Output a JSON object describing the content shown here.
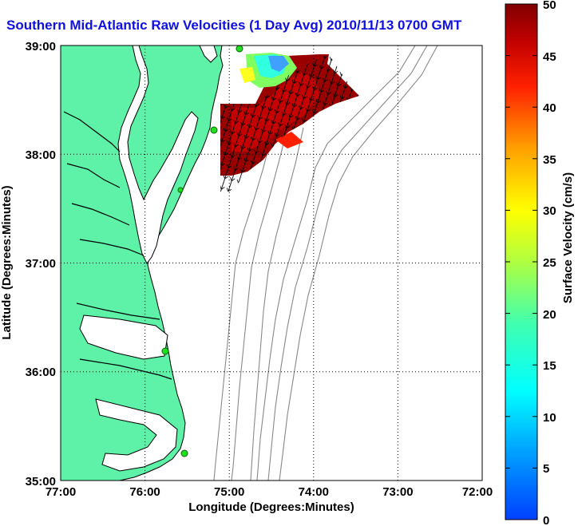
{
  "title": "Southern Mid-Atlantic Raw Velocities (1 Day Avg) 2010/11/13 0700 GMT",
  "map": {
    "xlabel": "Longitude (Degrees:Minutes)",
    "ylabel": "Latitude (Degrees:Minutes)",
    "x_ticks": [
      "77:00",
      "76:00",
      "75:00",
      "74:00",
      "73:00",
      "72:00"
    ],
    "y_ticks": [
      "39:00",
      "38:00",
      "37:00",
      "36:00",
      "35:00"
    ],
    "grid": "dotted",
    "land_color": "#5ef2a8",
    "coastline_color": "#000000",
    "bathymetry_color": "#888888",
    "station_color": "#22dd22"
  },
  "colorbar": {
    "label": "Surface Velocity (cm/s)",
    "ticks": [
      "50",
      "45",
      "40",
      "35",
      "30",
      "25",
      "20",
      "15",
      "10",
      "5",
      "0"
    ],
    "range": [
      0,
      50
    ]
  }
}
